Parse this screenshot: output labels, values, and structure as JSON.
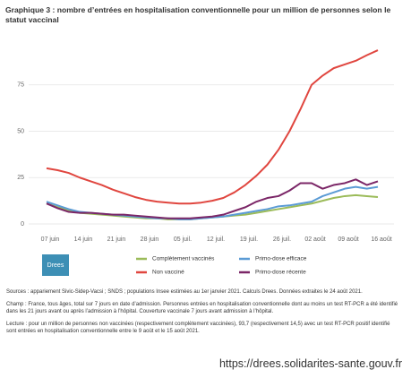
{
  "chart_data": {
    "type": "line",
    "title": "Graphique 3 : nombre d’entrées en hospitalisation conventionnelle pour un million de personnes selon le statut vaccinal",
    "categories": [
      "07 juin",
      null,
      null,
      "14 juin",
      null,
      null,
      "21 juin",
      null,
      null,
      "28 juin",
      null,
      null,
      "05 juil.",
      null,
      null,
      "12 juil.",
      null,
      null,
      "19 juil.",
      null,
      null,
      "26 juil.",
      null,
      null,
      "02 août",
      null,
      null,
      "09 août",
      null,
      null,
      "16 août"
    ],
    "ylim": [
      0,
      100
    ],
    "yticks": [
      0,
      25,
      50,
      75
    ],
    "grid": true,
    "series": [
      {
        "name": "Complètement vaccinés",
        "color": "#9bbb59",
        "values": [
          11,
          9,
          7.5,
          6,
          5.5,
          5,
          4.5,
          4,
          3.5,
          3,
          3,
          2.5,
          2.5,
          2.5,
          3,
          3.5,
          4,
          4.5,
          5,
          6,
          7,
          8,
          9,
          10,
          11,
          12.5,
          14,
          15,
          15.5,
          15,
          14.5
        ]
      },
      {
        "name": "Primo-dose efficace",
        "color": "#5b9bd5",
        "values": [
          12,
          10,
          8,
          6.5,
          6,
          5.5,
          5,
          4.5,
          4,
          3.5,
          3,
          3,
          2.5,
          2.5,
          3,
          3.5,
          4,
          5,
          6,
          7,
          8,
          9.5,
          10,
          11,
          12,
          15,
          17,
          19,
          20,
          19,
          20
        ]
      },
      {
        "name": "Non vacciné",
        "color": "#e0463f",
        "values": [
          30,
          29,
          27.5,
          25,
          23,
          21,
          18.5,
          16.5,
          14.5,
          13,
          12,
          11.5,
          11,
          11,
          11.5,
          12.5,
          14,
          17,
          21,
          26,
          32,
          40,
          50,
          62,
          75,
          80,
          84,
          86,
          88,
          91,
          93.7
        ]
      },
      {
        "name": "Primo-dose récente",
        "color": "#7b2667",
        "values": [
          11,
          8.5,
          6.5,
          6,
          6,
          5.5,
          5,
          5,
          4.5,
          4,
          3.5,
          3,
          3,
          3,
          3.5,
          4,
          5,
          7,
          9,
          12,
          14,
          15,
          18,
          22,
          22,
          19,
          21,
          22,
          24,
          21,
          23
        ]
      }
    ]
  },
  "logo": "Drees",
  "notes": [
    "Sources : appariement Sivic-Sidep-Vacsi ; SNDS ; populations Insee estimées au 1er janvier 2021. Calculs Drees. Données extraites le 24 août 2021.",
    "Champ : France, tous âges, total sur 7 jours en date d’admission. Personnes entrées en hospitalisation conventionnelle dont au moins un test RT-PCR a été identifié dans les 21 jours avant ou après l’admission à l’hôpital. Couverture vaccinale 7 jours avant admission à l’hôpital.",
    "Lecture : pour un million de personnes non vaccinées (respectivement complètement vaccinées), 93,7 (respectivement 14,5) avec un test RT-PCR positif identifié sont entrées en hospitalisation conventionnelle entre le 9 août et le 15 août 2021."
  ],
  "url": "https://drees.solidarites-sante.gouv.fr"
}
